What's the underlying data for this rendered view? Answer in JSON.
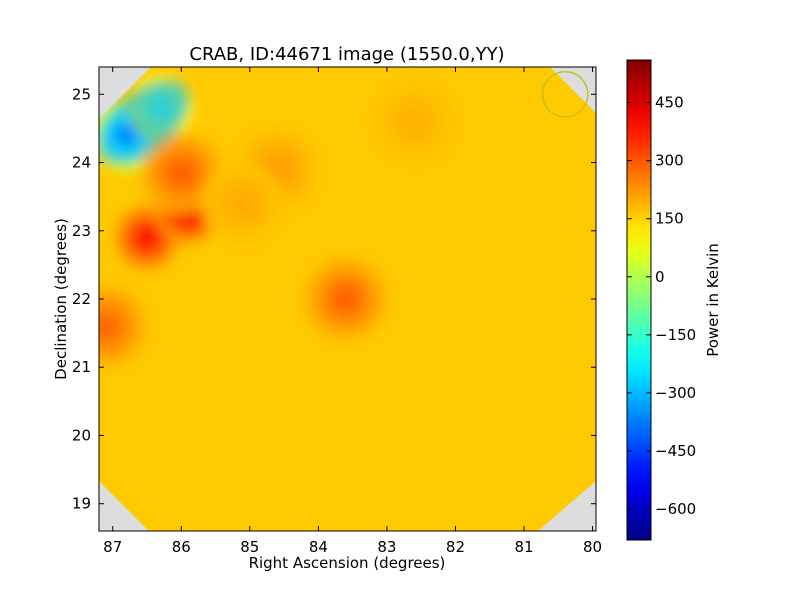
{
  "chart_data": {
    "type": "heatmap",
    "title": "CRAB, ID:44671 image (1550.0,YY)",
    "xlabel": "Right Ascension (degrees)",
    "ylabel": "Declination (degrees)",
    "xlim": [
      87.2,
      79.95
    ],
    "ylim": [
      18.6,
      25.4
    ],
    "x_ticks": [
      87,
      86,
      85,
      84,
      83,
      82,
      81,
      80
    ],
    "y_ticks": [
      19,
      20,
      21,
      22,
      23,
      24,
      25
    ],
    "x_inverted": true,
    "colorbar": {
      "label": "Power in Kelvin",
      "colormap": "jet",
      "range": [
        -680,
        560
      ],
      "ticks": [
        -600,
        -450,
        -300,
        -150,
        0,
        150,
        300,
        450
      ]
    },
    "background_level": 160,
    "features": [
      {
        "ra": 86.8,
        "dec": 24.4,
        "value": -580
      },
      {
        "ra": 86.3,
        "dec": 24.8,
        "value": -200
      },
      {
        "ra": 86.5,
        "dec": 22.9,
        "value": 460
      },
      {
        "ra": 85.9,
        "dec": 23.3,
        "value": 540
      },
      {
        "ra": 86.0,
        "dec": 23.85,
        "value": 330
      },
      {
        "ra": 87.1,
        "dec": 21.6,
        "value": 320
      },
      {
        "ra": 83.6,
        "dec": 22.0,
        "value": 330
      },
      {
        "ra": 84.6,
        "dec": 23.9,
        "value": 230
      },
      {
        "ra": 85.1,
        "dec": 23.4,
        "value": 210
      },
      {
        "ra": 82.6,
        "dec": 24.6,
        "value": 200
      }
    ],
    "beam_marker": {
      "ra": 80.4,
      "dec": 25.0,
      "shape": "circle",
      "color": "#bfbf1f"
    },
    "colors": {
      "background": "#ffe000",
      "edge_mask": "#dddddd"
    }
  }
}
